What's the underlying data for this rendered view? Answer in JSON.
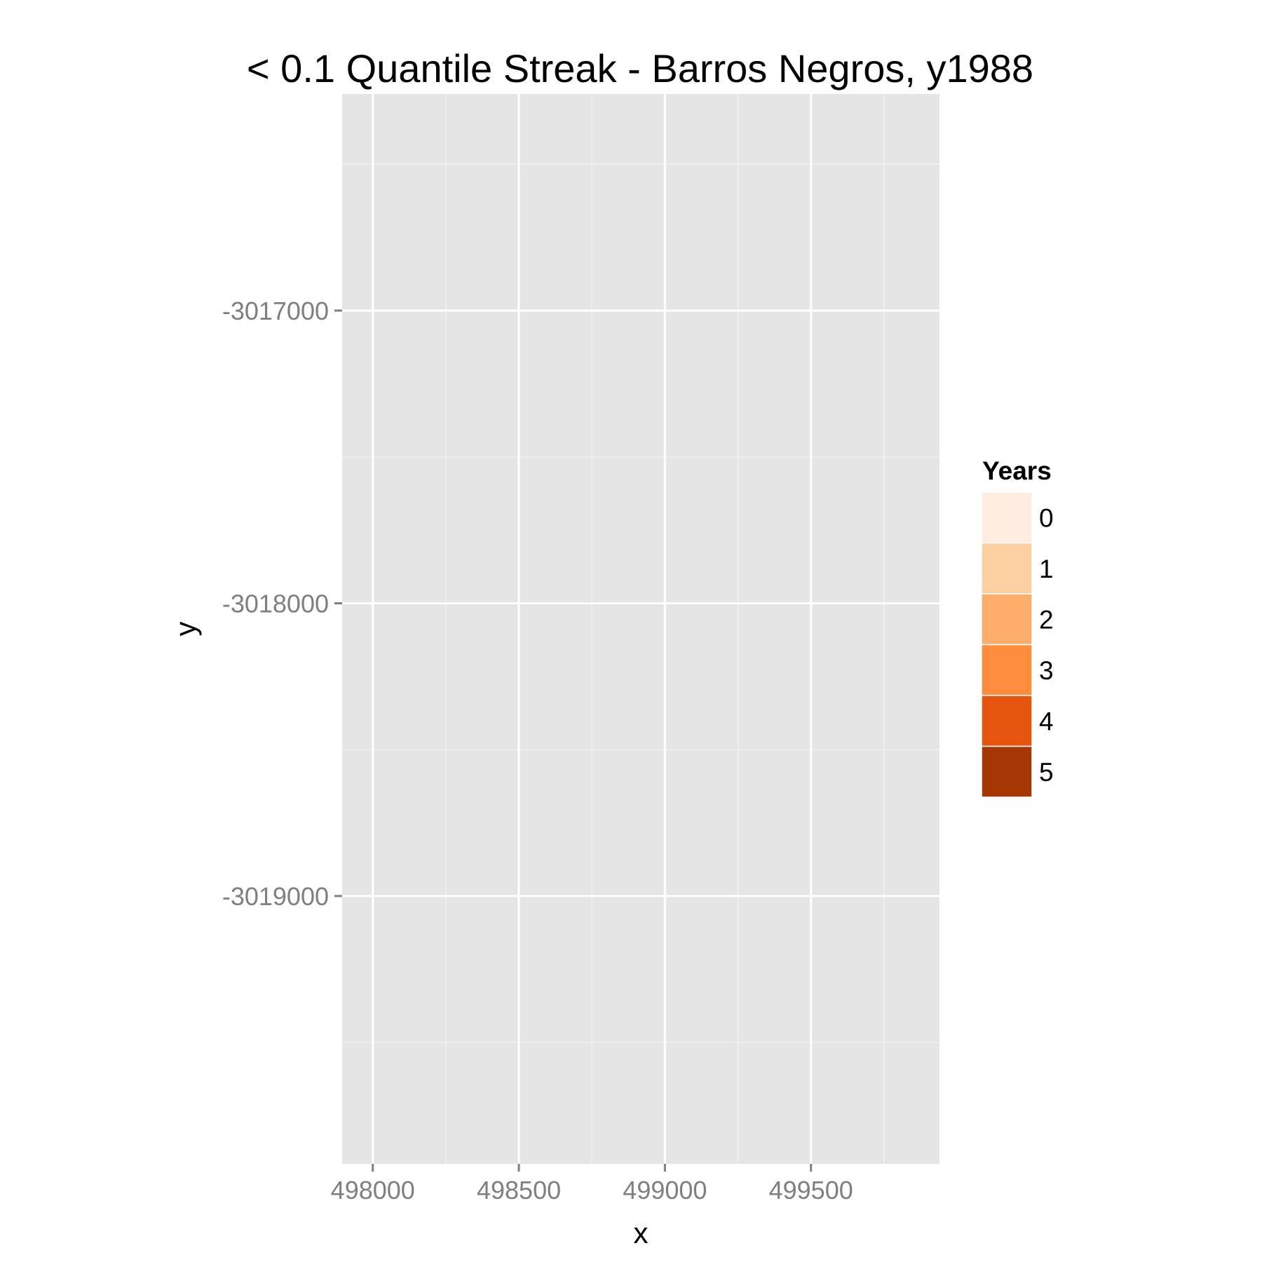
{
  "chart_data": {
    "type": "heatmap",
    "title": "< 0.1 Quantile Streak - Barros Negros, y1988",
    "xlabel": "x",
    "ylabel": "y",
    "xlim": [
      497895,
      499940
    ],
    "ylim": [
      -3019915,
      -3016260
    ],
    "x_ticks": [
      498000,
      498500,
      499000,
      499500
    ],
    "x_tick_labels": [
      "498000",
      "498500",
      "499000",
      "499500"
    ],
    "y_ticks": [
      -3017000,
      -3018000,
      -3019000
    ],
    "y_tick_labels": [
      "-3017000",
      "-3018000",
      "-3019000"
    ],
    "x_minor_ticks": [
      498250,
      498750,
      499250,
      499750
    ],
    "y_minor_ticks": [
      -3016500,
      -3017500,
      -3018500,
      -3019500
    ],
    "grid": true,
    "panel_background": "#e5e5e5",
    "grid_color": "#ffffff",
    "cells": [],
    "legend": {
      "title": "Years",
      "position": "right",
      "entries": [
        {
          "label": "0",
          "value": 0,
          "color": "#feede0"
        },
        {
          "label": "1",
          "value": 1,
          "color": "#fdd0a2"
        },
        {
          "label": "2",
          "value": 2,
          "color": "#fdae6b"
        },
        {
          "label": "3",
          "value": 3,
          "color": "#fd8d3c"
        },
        {
          "label": "4",
          "value": 4,
          "color": "#e6550d"
        },
        {
          "label": "5",
          "value": 5,
          "color": "#a63603"
        }
      ]
    }
  }
}
